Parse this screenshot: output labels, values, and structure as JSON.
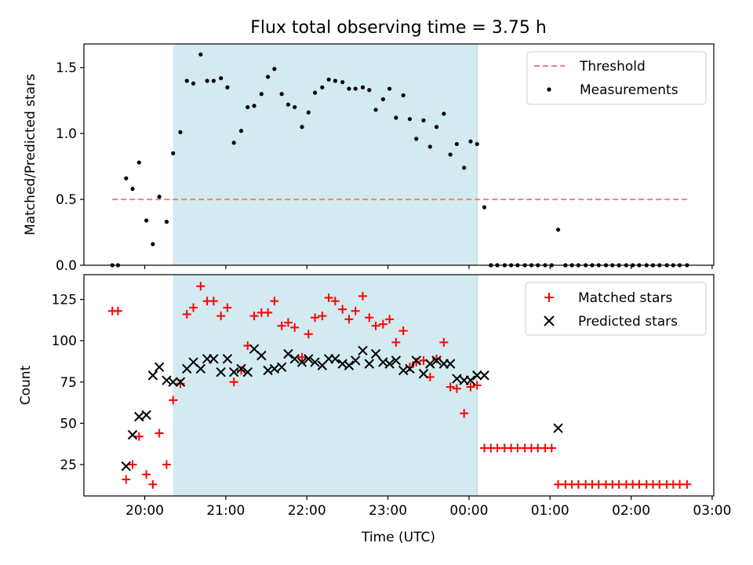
{
  "chart_data": {
    "title": "Flux total observing time = 3.75 h",
    "xlabel": "Time (UTC)",
    "x_units": "hours since 20:00 UTC",
    "x_ticks": [
      {
        "value": 0,
        "label": "20:00"
      },
      {
        "value": 1,
        "label": "21:00"
      },
      {
        "value": 2,
        "label": "22:00"
      },
      {
        "value": 3,
        "label": "23:00"
      },
      {
        "value": 4,
        "label": "00:00"
      },
      {
        "value": 5,
        "label": "01:00"
      },
      {
        "value": 6,
        "label": "02:00"
      },
      {
        "value": 7,
        "label": "03:00"
      }
    ],
    "xlim": [
      -0.75,
      7.02
    ],
    "shaded_interval": [
      0.35,
      4.1
    ],
    "shade_color": "#d2eaf0",
    "top": {
      "type": "scatter",
      "ylabel": "Matched/Predicted stars",
      "ylim": [
        0,
        1.68
      ],
      "y_ticks": [
        {
          "value": 0,
          "label": "0.0"
        },
        {
          "value": 0.5,
          "label": "0.5"
        },
        {
          "value": 1.0,
          "label": "1.0"
        },
        {
          "value": 1.5,
          "label": "1.5"
        }
      ],
      "threshold": {
        "name": "Threshold",
        "value": 0.5,
        "x_range": [
          -0.4,
          6.7
        ],
        "color": "#f08080"
      },
      "legend": {
        "position": "upper right",
        "entries": [
          "Threshold",
          "Measurements"
        ]
      },
      "series": [
        {
          "name": "Measurements",
          "color": "#000000",
          "points": [
            [
              -0.4,
              0.0
            ],
            [
              -0.33,
              0.0
            ],
            [
              -0.23,
              0.66
            ],
            [
              -0.15,
              0.58
            ],
            [
              -0.07,
              0.78
            ],
            [
              0.02,
              0.34
            ],
            [
              0.1,
              0.16
            ],
            [
              0.18,
              0.52
            ],
            [
              0.27,
              0.33
            ],
            [
              0.35,
              0.85
            ],
            [
              0.44,
              1.01
            ],
            [
              0.52,
              1.4
            ],
            [
              0.6,
              1.38
            ],
            [
              0.69,
              1.6
            ],
            [
              0.77,
              1.4
            ],
            [
              0.85,
              1.4
            ],
            [
              0.94,
              1.42
            ],
            [
              1.02,
              1.35
            ],
            [
              1.1,
              0.93
            ],
            [
              1.19,
              1.02
            ],
            [
              1.27,
              1.2
            ],
            [
              1.35,
              1.21
            ],
            [
              1.44,
              1.3
            ],
            [
              1.52,
              1.43
            ],
            [
              1.6,
              1.49
            ],
            [
              1.69,
              1.3
            ],
            [
              1.77,
              1.22
            ],
            [
              1.85,
              1.2
            ],
            [
              1.94,
              1.05
            ],
            [
              2.02,
              1.16
            ],
            [
              2.1,
              1.31
            ],
            [
              2.19,
              1.35
            ],
            [
              2.27,
              1.41
            ],
            [
              2.35,
              1.4
            ],
            [
              2.44,
              1.39
            ],
            [
              2.52,
              1.34
            ],
            [
              2.6,
              1.34
            ],
            [
              2.69,
              1.35
            ],
            [
              2.77,
              1.33
            ],
            [
              2.85,
              1.18
            ],
            [
              2.94,
              1.26
            ],
            [
              3.02,
              1.34
            ],
            [
              3.1,
              1.12
            ],
            [
              3.19,
              1.29
            ],
            [
              3.27,
              1.11
            ],
            [
              3.35,
              0.96
            ],
            [
              3.44,
              1.1
            ],
            [
              3.52,
              0.9
            ],
            [
              3.6,
              1.05
            ],
            [
              3.69,
              1.15
            ],
            [
              3.77,
              0.84
            ],
            [
              3.85,
              0.92
            ],
            [
              3.94,
              0.74
            ],
            [
              4.02,
              0.94
            ],
            [
              4.1,
              0.92
            ],
            [
              4.19,
              0.44
            ],
            [
              4.27,
              0.0
            ],
            [
              4.35,
              0.0
            ],
            [
              4.44,
              0.0
            ],
            [
              4.52,
              0.0
            ],
            [
              4.6,
              0.0
            ],
            [
              4.69,
              0.0
            ],
            [
              4.77,
              0.0
            ],
            [
              4.85,
              0.0
            ],
            [
              4.94,
              0.0
            ],
            [
              5.02,
              0.0
            ],
            [
              5.1,
              0.27
            ],
            [
              5.19,
              0.0
            ],
            [
              5.27,
              0.0
            ],
            [
              5.35,
              0.0
            ],
            [
              5.44,
              0.0
            ],
            [
              5.52,
              0.0
            ],
            [
              5.6,
              0.0
            ],
            [
              5.69,
              0.0
            ],
            [
              5.77,
              0.0
            ],
            [
              5.85,
              0.0
            ],
            [
              5.94,
              0.0
            ],
            [
              6.02,
              0.0
            ],
            [
              6.1,
              0.0
            ],
            [
              6.19,
              0.0
            ],
            [
              6.27,
              0.0
            ],
            [
              6.35,
              0.0
            ],
            [
              6.44,
              0.0
            ],
            [
              6.52,
              0.0
            ],
            [
              6.6,
              0.0
            ],
            [
              6.69,
              0.0
            ]
          ]
        }
      ]
    },
    "bottom": {
      "type": "scatter",
      "ylabel": "Count",
      "ylim": [
        6,
        140
      ],
      "y_ticks": [
        {
          "value": 25,
          "label": "25"
        },
        {
          "value": 50,
          "label": "50"
        },
        {
          "value": 75,
          "label": "75"
        },
        {
          "value": 100,
          "label": "100"
        },
        {
          "value": 125,
          "label": "125"
        }
      ],
      "legend": {
        "position": "upper right",
        "entries": [
          "Matched stars",
          "Predicted stars"
        ]
      },
      "series": [
        {
          "name": "Matched stars",
          "marker": "plus",
          "color": "#ff0000",
          "points": [
            [
              -0.4,
              118
            ],
            [
              -0.33,
              118
            ],
            [
              -0.23,
              16
            ],
            [
              -0.15,
              25
            ],
            [
              -0.07,
              42
            ],
            [
              0.02,
              19
            ],
            [
              0.1,
              13
            ],
            [
              0.18,
              44
            ],
            [
              0.27,
              25
            ],
            [
              0.35,
              64
            ],
            [
              0.44,
              74
            ],
            [
              0.52,
              116
            ],
            [
              0.6,
              120
            ],
            [
              0.69,
              133
            ],
            [
              0.77,
              124
            ],
            [
              0.85,
              124
            ],
            [
              0.94,
              115
            ],
            [
              1.02,
              120
            ],
            [
              1.1,
              75
            ],
            [
              1.19,
              82
            ],
            [
              1.27,
              97
            ],
            [
              1.35,
              115
            ],
            [
              1.44,
              117
            ],
            [
              1.52,
              117
            ],
            [
              1.6,
              124
            ],
            [
              1.69,
              109
            ],
            [
              1.77,
              111
            ],
            [
              1.85,
              108
            ],
            [
              1.94,
              90
            ],
            [
              2.02,
              104
            ],
            [
              2.1,
              114
            ],
            [
              2.19,
              115
            ],
            [
              2.27,
              126
            ],
            [
              2.35,
              124
            ],
            [
              2.44,
              119
            ],
            [
              2.52,
              113
            ],
            [
              2.6,
              118
            ],
            [
              2.69,
              127
            ],
            [
              2.77,
              114
            ],
            [
              2.85,
              109
            ],
            [
              2.94,
              110
            ],
            [
              3.02,
              113
            ],
            [
              3.1,
              99
            ],
            [
              3.19,
              106
            ],
            [
              3.27,
              84
            ],
            [
              3.35,
              87
            ],
            [
              3.44,
              88
            ],
            [
              3.52,
              78
            ],
            [
              3.6,
              89
            ],
            [
              3.69,
              99
            ],
            [
              3.77,
              72
            ],
            [
              3.85,
              71
            ],
            [
              3.94,
              56
            ],
            [
              4.02,
              72
            ],
            [
              4.1,
              73
            ],
            [
              4.19,
              35
            ],
            [
              4.27,
              35
            ],
            [
              4.35,
              35
            ],
            [
              4.44,
              35
            ],
            [
              4.52,
              35
            ],
            [
              4.6,
              35
            ],
            [
              4.69,
              35
            ],
            [
              4.77,
              35
            ],
            [
              4.85,
              35
            ],
            [
              4.94,
              35
            ],
            [
              5.02,
              35
            ],
            [
              5.1,
              13
            ],
            [
              5.19,
              13
            ],
            [
              5.27,
              13
            ],
            [
              5.35,
              13
            ],
            [
              5.44,
              13
            ],
            [
              5.52,
              13
            ],
            [
              5.6,
              13
            ],
            [
              5.69,
              13
            ],
            [
              5.77,
              13
            ],
            [
              5.85,
              13
            ],
            [
              5.94,
              13
            ],
            [
              6.02,
              13
            ],
            [
              6.1,
              13
            ],
            [
              6.19,
              13
            ],
            [
              6.27,
              13
            ],
            [
              6.35,
              13
            ],
            [
              6.44,
              13
            ],
            [
              6.52,
              13
            ],
            [
              6.6,
              13
            ],
            [
              6.69,
              13
            ]
          ]
        },
        {
          "name": "Predicted stars",
          "marker": "x",
          "color": "#000000",
          "points": [
            [
              -0.23,
              24
            ],
            [
              -0.15,
              43
            ],
            [
              -0.07,
              54
            ],
            [
              0.02,
              55
            ],
            [
              0.1,
              79
            ],
            [
              0.18,
              84
            ],
            [
              0.27,
              76
            ],
            [
              0.35,
              75
            ],
            [
              0.44,
              75
            ],
            [
              0.52,
              83
            ],
            [
              0.6,
              87
            ],
            [
              0.69,
              83
            ],
            [
              0.77,
              89
            ],
            [
              0.85,
              89
            ],
            [
              0.94,
              81
            ],
            [
              1.02,
              89
            ],
            [
              1.1,
              81
            ],
            [
              1.19,
              83
            ],
            [
              1.27,
              81
            ],
            [
              1.35,
              95
            ],
            [
              1.44,
              91
            ],
            [
              1.52,
              82
            ],
            [
              1.6,
              83
            ],
            [
              1.69,
              84
            ],
            [
              1.77,
              92
            ],
            [
              1.85,
              89
            ],
            [
              1.94,
              87
            ],
            [
              2.02,
              89
            ],
            [
              2.1,
              87
            ],
            [
              2.19,
              85
            ],
            [
              2.27,
              89
            ],
            [
              2.35,
              89
            ],
            [
              2.44,
              86
            ],
            [
              2.52,
              85
            ],
            [
              2.6,
              88
            ],
            [
              2.69,
              94
            ],
            [
              2.77,
              86
            ],
            [
              2.85,
              92
            ],
            [
              2.94,
              87
            ],
            [
              3.02,
              86
            ],
            [
              3.1,
              88
            ],
            [
              3.19,
              82
            ],
            [
              3.27,
              83
            ],
            [
              3.35,
              88
            ],
            [
              3.44,
              80
            ],
            [
              3.52,
              86
            ],
            [
              3.6,
              88
            ],
            [
              3.69,
              86
            ],
            [
              3.77,
              86
            ],
            [
              3.85,
              77
            ],
            [
              3.94,
              76
            ],
            [
              4.02,
              76
            ],
            [
              4.1,
              79
            ],
            [
              4.19,
              79
            ],
            [
              5.1,
              47
            ]
          ]
        }
      ]
    }
  }
}
